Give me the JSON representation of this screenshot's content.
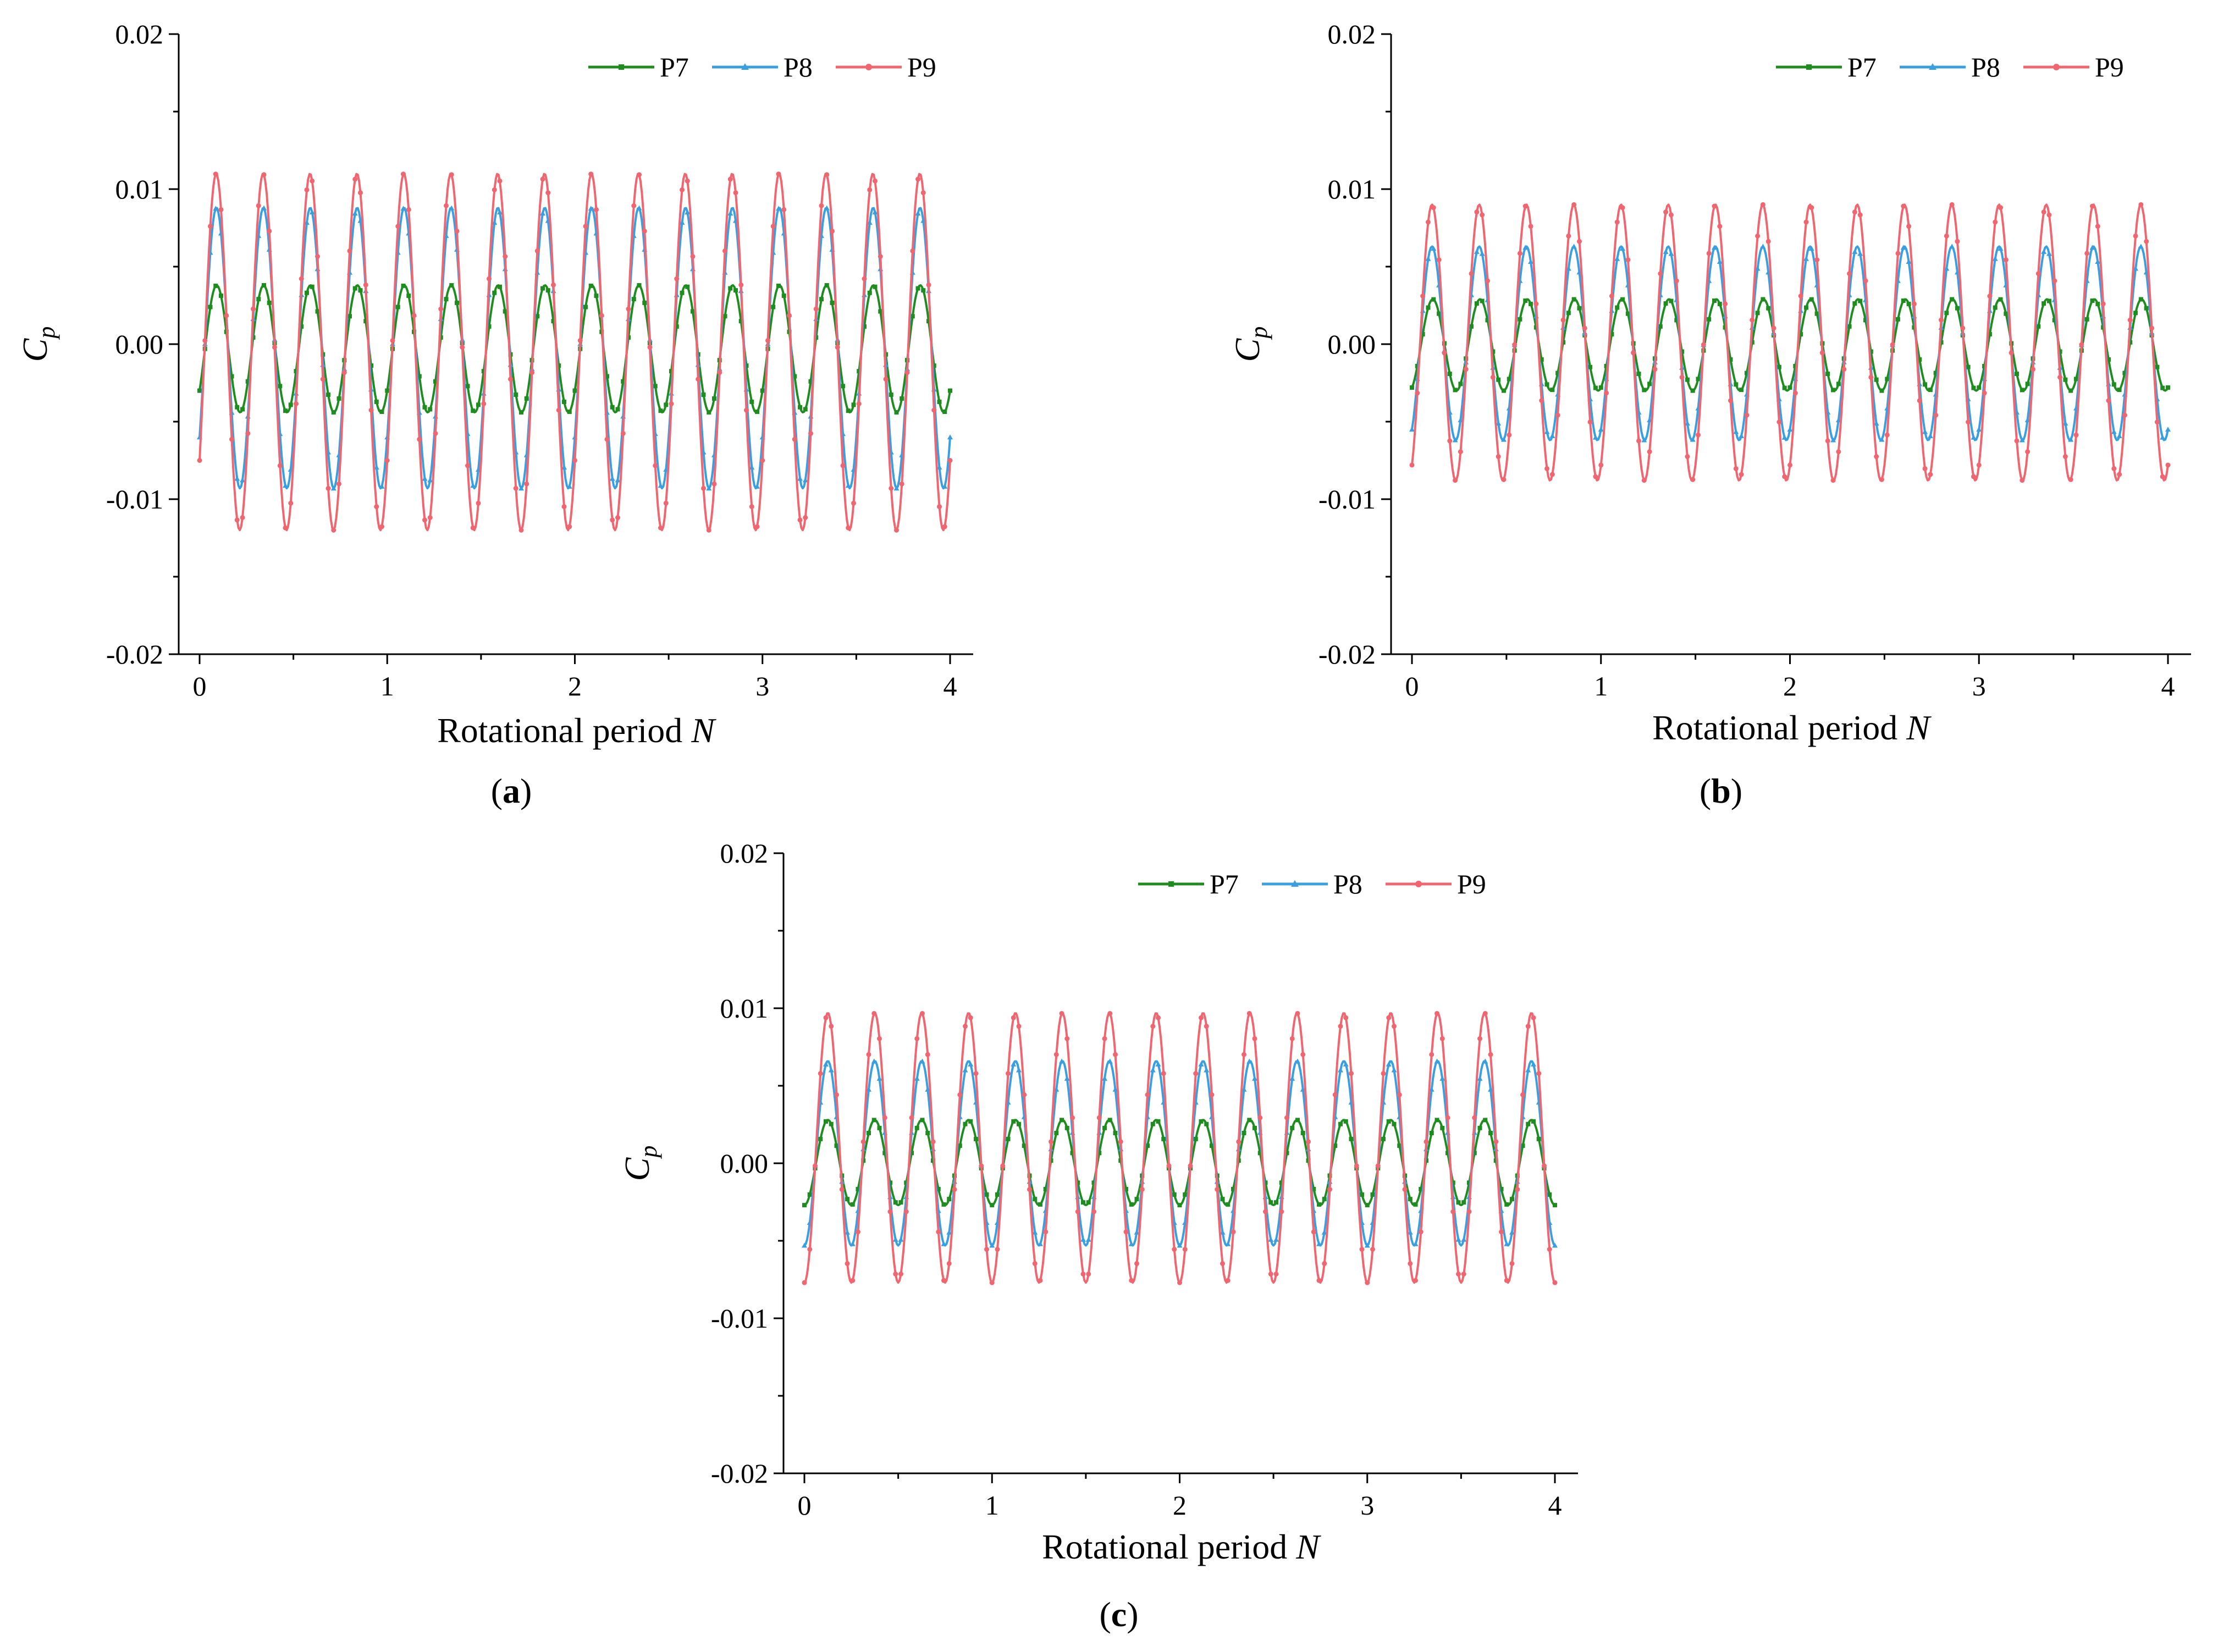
{
  "chart_data": [
    {
      "type": "line",
      "panel_label": "a",
      "xlabel": "Rotational period",
      "xlabel_italic": "N",
      "ylabel_main": "C",
      "ylabel_sub": "p",
      "xlim": [
        0,
        4
      ],
      "ylim": [
        -0.02,
        0.02
      ],
      "xticks": [
        "0",
        "1",
        "2",
        "3",
        "4"
      ],
      "yticks": [
        "-0.02",
        "-0.01",
        "0.00",
        "0.01",
        "0.02"
      ],
      "legend_position": "top-right",
      "periods_per_rotation": 4,
      "series": [
        {
          "name": "P7",
          "color": "#1e8c1e",
          "marker": "square",
          "amplitude_peak": 0.0038,
          "amplitude_trough": -0.0044,
          "phase_start": -0.003
        },
        {
          "name": "P8",
          "color": "#3a9fe0",
          "marker": "triangle",
          "amplitude_peak": 0.0088,
          "amplitude_trough": -0.0093,
          "phase_start": -0.006
        },
        {
          "name": "P9",
          "color": "#f06670",
          "marker": "circle",
          "amplitude_peak": 0.011,
          "amplitude_trough": -0.012,
          "phase_start": -0.0075
        }
      ]
    },
    {
      "type": "line",
      "panel_label": "b",
      "xlabel": "Rotational period",
      "xlabel_italic": "N",
      "ylabel_main": "C",
      "ylabel_sub": "p",
      "xlim": [
        0,
        4
      ],
      "ylim": [
        -0.02,
        0.02
      ],
      "xticks": [
        "0",
        "1",
        "2",
        "3",
        "4"
      ],
      "yticks": [
        "-0.02",
        "-0.01",
        "0.00",
        "0.01",
        "0.02"
      ],
      "legend_position": "top-right",
      "periods_per_rotation": 4,
      "series": [
        {
          "name": "P7",
          "color": "#1e8c1e",
          "marker": "square",
          "amplitude_peak": 0.0029,
          "amplitude_trough": -0.003,
          "phase_start": -0.0028
        },
        {
          "name": "P8",
          "color": "#3a9fe0",
          "marker": "triangle",
          "amplitude_peak": 0.0063,
          "amplitude_trough": -0.0062,
          "phase_start": -0.0055
        },
        {
          "name": "P9",
          "color": "#f06670",
          "marker": "circle",
          "amplitude_peak": 0.009,
          "amplitude_trough": -0.0088,
          "phase_start": -0.0078
        }
      ]
    },
    {
      "type": "line",
      "panel_label": "c",
      "xlabel": "Rotational period",
      "xlabel_italic": "N",
      "ylabel_main": "C",
      "ylabel_sub": "p",
      "xlim": [
        0,
        4
      ],
      "ylim": [
        -0.02,
        0.02
      ],
      "xticks": [
        "0",
        "1",
        "2",
        "3",
        "4"
      ],
      "yticks": [
        "-0.02",
        "-0.01",
        "0.00",
        "0.01",
        "0.02"
      ],
      "legend_position": "top-right",
      "periods_per_rotation": 4,
      "series": [
        {
          "name": "P7",
          "color": "#1e8c1e",
          "marker": "square",
          "amplitude_peak": 0.0028,
          "amplitude_trough": -0.0027,
          "phase_start": -0.0027
        },
        {
          "name": "P8",
          "color": "#3a9fe0",
          "marker": "triangle",
          "amplitude_peak": 0.0066,
          "amplitude_trough": -0.0053,
          "phase_start": -0.0054
        },
        {
          "name": "P9",
          "color": "#f06670",
          "marker": "circle",
          "amplitude_peak": 0.0097,
          "amplitude_trough": -0.0077,
          "phase_start": -0.008
        }
      ]
    }
  ]
}
